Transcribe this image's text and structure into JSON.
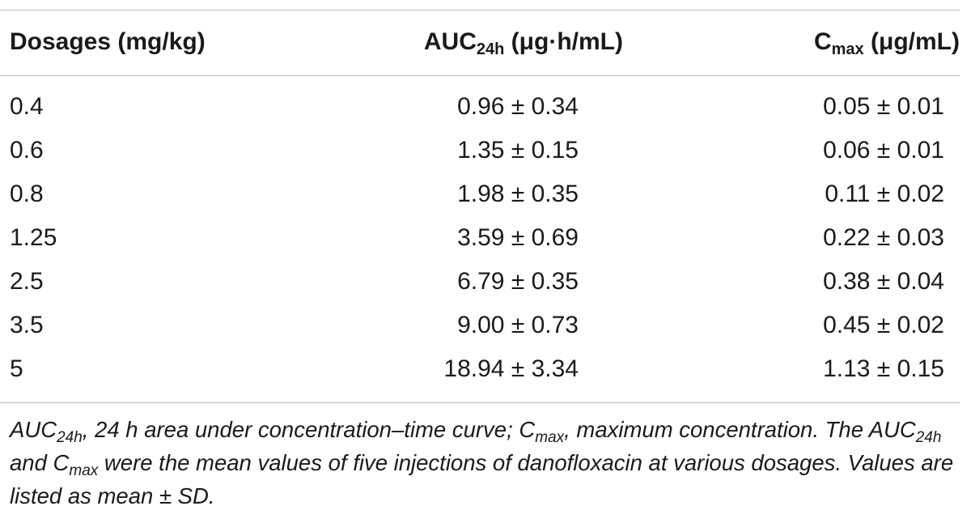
{
  "table": {
    "headers": {
      "dosage": "Dosages (mg/kg)",
      "auc_main": "AUC",
      "auc_sub": "24h",
      "auc_unit": " (μg·h/mL)",
      "cmax_main": "C",
      "cmax_sub": "max",
      "cmax_unit": " (μg/mL)"
    },
    "rows": [
      {
        "dosage": "0.4",
        "auc": "0.96 ± 0.34",
        "cmax": "0.05 ± 0.01"
      },
      {
        "dosage": "0.6",
        "auc": "1.35 ± 0.15",
        "cmax": "0.06 ± 0.01"
      },
      {
        "dosage": "0.8",
        "auc": "1.98 ± 0.35",
        "cmax": "0.11 ± 0.02"
      },
      {
        "dosage": "1.25",
        "auc": "3.59 ± 0.69",
        "cmax": "0.22 ± 0.03"
      },
      {
        "dosage": "2.5",
        "auc": "6.79 ± 0.35",
        "cmax": "0.38 ± 0.04"
      },
      {
        "dosage": "3.5",
        "auc": "9.00 ± 0.73",
        "cmax": "0.45 ± 0.02"
      },
      {
        "dosage": "5",
        "auc": "18.94 ± 3.34",
        "cmax": "1.13 ± 0.15"
      }
    ]
  },
  "footnote": {
    "p1": "AUC",
    "p2": "24h",
    "p3": ", 24 h area under concentration–time curve; C",
    "p4": "max",
    "p5": ", maximum concentration. The AUC",
    "p6": "24h",
    "p7": " and C",
    "p8": "max",
    "p9": " were the mean values of five injections of danofloxacin at various dosages. Values are listed as mean ± SD."
  }
}
